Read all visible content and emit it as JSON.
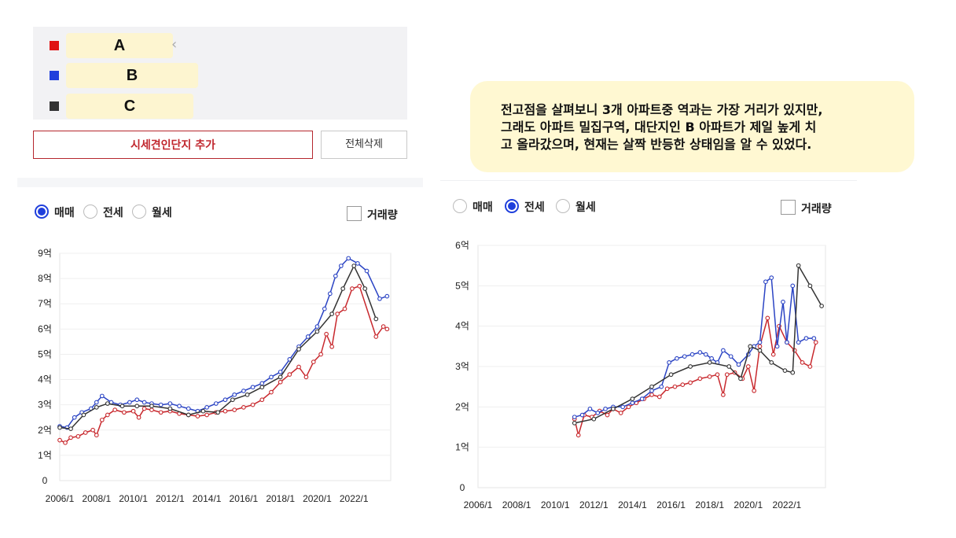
{
  "legend": [
    {
      "label": "A",
      "color": "#e01212"
    },
    {
      "label": "B",
      "color": "#1f3fdc"
    },
    {
      "label": "C",
      "color": "#333333"
    }
  ],
  "buttons": {
    "add": "시세견인단지 추가",
    "clear": "전체삭제"
  },
  "callout": {
    "lines": [
      "전고점을 살펴보니 3개 아파트중 역과는 가장 거리가 있지만,",
      "그래도 아파트 밀집구역, 대단지인 B 아파트가 제일 높게 치",
      "고 올라갔으며, 현재는 살짝 반등한 상태임을 알 수 있었다."
    ]
  },
  "left_controls": {
    "options": [
      "매매",
      "전세",
      "월세"
    ],
    "selected": 0,
    "volume": "거래량"
  },
  "right_controls": {
    "options": [
      "매매",
      "전세",
      "월세"
    ],
    "selected": 1,
    "volume": "거래량"
  },
  "chart_data": [
    {
      "type": "line",
      "xlim": [
        2006,
        2024
      ],
      "ylim": [
        0,
        9
      ],
      "yticks": [
        {
          "v": 0,
          "label": "0"
        },
        {
          "v": 1,
          "label": "1억"
        },
        {
          "v": 2,
          "label": "2억"
        },
        {
          "v": 3,
          "label": "3억"
        },
        {
          "v": 4,
          "label": "4억"
        },
        {
          "v": 5,
          "label": "5억"
        },
        {
          "v": 6,
          "label": "6억"
        },
        {
          "v": 7,
          "label": "7억"
        },
        {
          "v": 8,
          "label": "8억"
        },
        {
          "v": 9,
          "label": "9억"
        }
      ],
      "xticks": [
        {
          "v": 2006,
          "label": "2006/1"
        },
        {
          "v": 2008,
          "label": "2008/1"
        },
        {
          "v": 2010,
          "label": "2010/1"
        },
        {
          "v": 2012,
          "label": "2012/1"
        },
        {
          "v": 2014,
          "label": "2014/1"
        },
        {
          "v": 2016,
          "label": "2016/1"
        },
        {
          "v": 2018,
          "label": "2018/1"
        },
        {
          "v": 2020,
          "label": "2020/1"
        },
        {
          "v": 2022,
          "label": "2022/1"
        }
      ],
      "series": [
        {
          "name": "A",
          "color": "#c8282d",
          "points": [
            [
              2006.0,
              1.6
            ],
            [
              2006.3,
              1.5
            ],
            [
              2006.6,
              1.7
            ],
            [
              2007.0,
              1.75
            ],
            [
              2007.4,
              1.9
            ],
            [
              2007.8,
              2.0
            ],
            [
              2008.0,
              1.8
            ],
            [
              2008.3,
              2.4
            ],
            [
              2008.6,
              2.6
            ],
            [
              2009.0,
              2.8
            ],
            [
              2009.5,
              2.7
            ],
            [
              2010.0,
              2.75
            ],
            [
              2010.3,
              2.5
            ],
            [
              2010.6,
              2.85
            ],
            [
              2011.0,
              2.8
            ],
            [
              2011.5,
              2.7
            ],
            [
              2012.0,
              2.75
            ],
            [
              2012.5,
              2.65
            ],
            [
              2013.0,
              2.6
            ],
            [
              2013.5,
              2.55
            ],
            [
              2014.0,
              2.6
            ],
            [
              2014.5,
              2.7
            ],
            [
              2015.0,
              2.75
            ],
            [
              2015.5,
              2.8
            ],
            [
              2016.0,
              2.9
            ],
            [
              2016.5,
              3.0
            ],
            [
              2017.0,
              3.2
            ],
            [
              2017.5,
              3.5
            ],
            [
              2018.0,
              3.9
            ],
            [
              2018.5,
              4.2
            ],
            [
              2019.0,
              4.5
            ],
            [
              2019.4,
              4.1
            ],
            [
              2019.8,
              4.7
            ],
            [
              2020.2,
              5.0
            ],
            [
              2020.5,
              5.8
            ],
            [
              2020.8,
              5.3
            ],
            [
              2021.1,
              6.6
            ],
            [
              2021.5,
              6.8
            ],
            [
              2021.9,
              7.6
            ],
            [
              2022.3,
              7.7
            ],
            [
              2023.2,
              5.7
            ],
            [
              2023.6,
              6.1
            ],
            [
              2023.8,
              6.0
            ]
          ]
        },
        {
          "name": "B",
          "color": "#2b44c4",
          "points": [
            [
              2006.0,
              2.15
            ],
            [
              2006.4,
              2.1
            ],
            [
              2006.8,
              2.5
            ],
            [
              2007.2,
              2.7
            ],
            [
              2007.7,
              2.85
            ],
            [
              2008.0,
              3.1
            ],
            [
              2008.3,
              3.35
            ],
            [
              2008.8,
              3.1
            ],
            [
              2009.3,
              3.0
            ],
            [
              2009.8,
              3.1
            ],
            [
              2010.2,
              3.2
            ],
            [
              2010.6,
              3.1
            ],
            [
              2011.0,
              3.05
            ],
            [
              2011.5,
              3.0
            ],
            [
              2012.0,
              3.05
            ],
            [
              2012.5,
              2.95
            ],
            [
              2013.0,
              2.85
            ],
            [
              2013.5,
              2.75
            ],
            [
              2014.0,
              2.9
            ],
            [
              2014.5,
              3.05
            ],
            [
              2015.0,
              3.2
            ],
            [
              2015.5,
              3.4
            ],
            [
              2016.0,
              3.55
            ],
            [
              2016.5,
              3.7
            ],
            [
              2017.0,
              3.85
            ],
            [
              2017.5,
              4.1
            ],
            [
              2018.0,
              4.3
            ],
            [
              2018.5,
              4.8
            ],
            [
              2019.0,
              5.3
            ],
            [
              2019.5,
              5.7
            ],
            [
              2020.0,
              6.1
            ],
            [
              2020.4,
              6.8
            ],
            [
              2020.7,
              7.4
            ],
            [
              2021.0,
              8.1
            ],
            [
              2021.3,
              8.5
            ],
            [
              2021.7,
              8.8
            ],
            [
              2022.2,
              8.6
            ],
            [
              2022.7,
              8.3
            ],
            [
              2023.4,
              7.2
            ],
            [
              2023.8,
              7.3
            ]
          ]
        },
        {
          "name": "C",
          "color": "#333333",
          "points": [
            [
              2006.0,
              2.1
            ],
            [
              2006.6,
              2.05
            ],
            [
              2007.3,
              2.6
            ],
            [
              2008.0,
              2.9
            ],
            [
              2008.6,
              3.05
            ],
            [
              2009.4,
              2.95
            ],
            [
              2010.2,
              2.95
            ],
            [
              2011.0,
              2.95
            ],
            [
              2012.0,
              2.85
            ],
            [
              2013.0,
              2.6
            ],
            [
              2013.8,
              2.75
            ],
            [
              2014.6,
              2.7
            ],
            [
              2015.4,
              3.2
            ],
            [
              2016.2,
              3.4
            ],
            [
              2017.0,
              3.7
            ],
            [
              2018.0,
              4.1
            ],
            [
              2019.0,
              5.2
            ],
            [
              2020.0,
              5.9
            ],
            [
              2020.8,
              6.6
            ],
            [
              2021.4,
              7.6
            ],
            [
              2022.0,
              8.5
            ],
            [
              2022.6,
              7.6
            ],
            [
              2023.2,
              6.4
            ]
          ]
        }
      ]
    },
    {
      "type": "line",
      "xlim": [
        2006,
        2024
      ],
      "ylim": [
        0,
        6
      ],
      "yticks": [
        {
          "v": 0,
          "label": "0"
        },
        {
          "v": 1,
          "label": "1억"
        },
        {
          "v": 2,
          "label": "2억"
        },
        {
          "v": 3,
          "label": "3억"
        },
        {
          "v": 4,
          "label": "4억"
        },
        {
          "v": 5,
          "label": "5억"
        },
        {
          "v": 6,
          "label": "6억"
        }
      ],
      "xticks": [
        {
          "v": 2006,
          "label": "2006/1"
        },
        {
          "v": 2008,
          "label": "2008/1"
        },
        {
          "v": 2010,
          "label": "2010/1"
        },
        {
          "v": 2012,
          "label": "2012/1"
        },
        {
          "v": 2014,
          "label": "2014/1"
        },
        {
          "v": 2016,
          "label": "2016/1"
        },
        {
          "v": 2018,
          "label": "2018/1"
        },
        {
          "v": 2020,
          "label": "2020/1"
        },
        {
          "v": 2022,
          "label": "2022/1"
        }
      ],
      "series": [
        {
          "name": "A",
          "color": "#c8282d",
          "points": [
            [
              2011.0,
              1.7
            ],
            [
              2011.2,
              1.3
            ],
            [
              2011.5,
              1.8
            ],
            [
              2011.9,
              1.75
            ],
            [
              2012.3,
              1.9
            ],
            [
              2012.7,
              1.8
            ],
            [
              2013.0,
              1.95
            ],
            [
              2013.4,
              1.85
            ],
            [
              2013.8,
              2.0
            ],
            [
              2014.2,
              2.1
            ],
            [
              2014.6,
              2.2
            ],
            [
              2015.0,
              2.3
            ],
            [
              2015.4,
              2.25
            ],
            [
              2015.8,
              2.45
            ],
            [
              2016.2,
              2.5
            ],
            [
              2016.6,
              2.55
            ],
            [
              2017.0,
              2.6
            ],
            [
              2017.5,
              2.7
            ],
            [
              2018.0,
              2.75
            ],
            [
              2018.4,
              2.8
            ],
            [
              2018.7,
              2.3
            ],
            [
              2018.9,
              2.8
            ],
            [
              2019.3,
              2.85
            ],
            [
              2019.7,
              2.7
            ],
            [
              2020.0,
              3.0
            ],
            [
              2020.3,
              2.4
            ],
            [
              2020.6,
              3.5
            ],
            [
              2021.0,
              4.2
            ],
            [
              2021.3,
              3.3
            ],
            [
              2021.6,
              4.0
            ],
            [
              2022.0,
              3.6
            ],
            [
              2022.4,
              3.4
            ],
            [
              2022.8,
              3.1
            ],
            [
              2023.2,
              3.0
            ],
            [
              2023.5,
              3.6
            ]
          ]
        },
        {
          "name": "B",
          "color": "#2b44c4",
          "points": [
            [
              2011.0,
              1.75
            ],
            [
              2011.4,
              1.8
            ],
            [
              2011.8,
              1.95
            ],
            [
              2012.2,
              1.85
            ],
            [
              2012.6,
              1.95
            ],
            [
              2013.0,
              2.0
            ],
            [
              2013.5,
              2.0
            ],
            [
              2014.0,
              2.1
            ],
            [
              2014.5,
              2.2
            ],
            [
              2015.0,
              2.4
            ],
            [
              2015.5,
              2.5
            ],
            [
              2015.9,
              3.1
            ],
            [
              2016.3,
              3.2
            ],
            [
              2016.7,
              3.25
            ],
            [
              2017.1,
              3.3
            ],
            [
              2017.5,
              3.35
            ],
            [
              2017.8,
              3.3
            ],
            [
              2018.1,
              3.2
            ],
            [
              2018.4,
              3.1
            ],
            [
              2018.7,
              3.4
            ],
            [
              2019.1,
              3.25
            ],
            [
              2019.5,
              3.05
            ],
            [
              2020.0,
              3.3
            ],
            [
              2020.3,
              3.5
            ],
            [
              2020.6,
              3.6
            ],
            [
              2020.9,
              5.1
            ],
            [
              2021.2,
              5.2
            ],
            [
              2021.5,
              3.5
            ],
            [
              2021.8,
              4.6
            ],
            [
              2022.0,
              3.6
            ],
            [
              2022.3,
              5.0
            ],
            [
              2022.6,
              3.6
            ],
            [
              2023.0,
              3.7
            ],
            [
              2023.4,
              3.7
            ]
          ]
        },
        {
          "name": "C",
          "color": "#333333",
          "points": [
            [
              2011.0,
              1.6
            ],
            [
              2012.0,
              1.7
            ],
            [
              2013.0,
              1.95
            ],
            [
              2014.0,
              2.2
            ],
            [
              2015.0,
              2.5
            ],
            [
              2016.0,
              2.8
            ],
            [
              2017.0,
              3.0
            ],
            [
              2018.0,
              3.1
            ],
            [
              2019.0,
              3.0
            ],
            [
              2019.6,
              2.7
            ],
            [
              2020.1,
              3.5
            ],
            [
              2020.6,
              3.4
            ],
            [
              2021.2,
              3.1
            ],
            [
              2021.9,
              2.9
            ],
            [
              2022.3,
              2.85
            ],
            [
              2022.6,
              5.5
            ],
            [
              2023.2,
              5.0
            ],
            [
              2023.8,
              4.5
            ]
          ]
        }
      ]
    }
  ]
}
